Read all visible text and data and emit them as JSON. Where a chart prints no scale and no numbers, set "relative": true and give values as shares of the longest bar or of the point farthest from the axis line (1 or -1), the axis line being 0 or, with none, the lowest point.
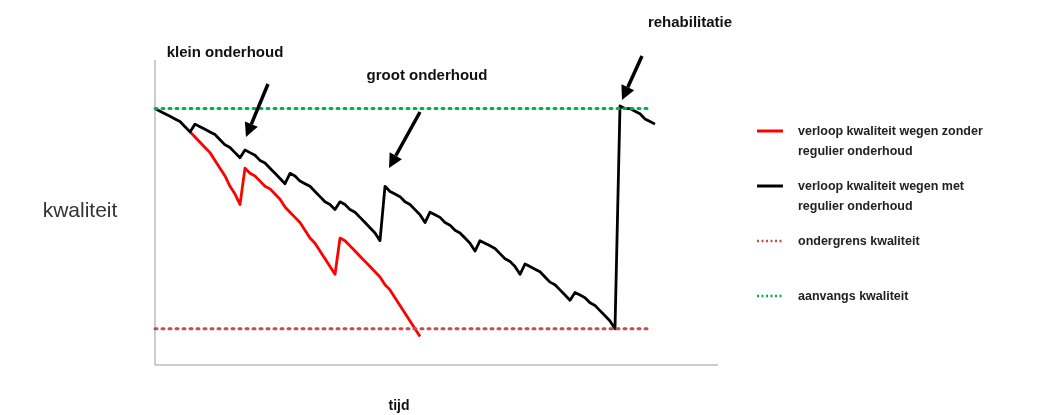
{
  "chart_data": {
    "type": "line",
    "relative": true,
    "xlabel": "tijd",
    "ylabel": "kwaliteit",
    "legend": "right",
    "line_style": "solid",
    "marker": "none",
    "annotations": [
      "klein onderhoud",
      "groot onderhoud",
      "rehabilitatie"
    ],
    "categories": [
      null,
      null,
      null,
      null,
      null,
      null,
      null,
      null,
      null,
      null,
      null,
      null,
      null,
      null,
      null,
      null,
      null,
      null,
      null,
      null,
      null,
      null,
      null,
      null,
      null,
      null,
      null,
      null,
      null,
      null,
      null,
      null,
      null,
      null,
      null,
      null,
      null,
      null,
      null,
      null,
      null,
      null,
      null,
      null,
      null,
      null,
      null,
      null,
      null,
      null,
      null,
      null,
      null,
      null,
      null,
      null,
      null,
      null,
      null,
      null,
      null,
      null,
      null,
      null,
      null,
      null,
      null,
      null,
      null,
      null,
      null,
      null,
      null,
      null,
      null,
      null,
      null,
      null,
      null,
      null,
      null,
      null,
      null,
      null,
      null,
      null,
      null,
      null,
      null,
      null,
      null,
      null,
      null,
      null,
      null,
      null,
      null,
      null,
      null,
      null,
      null
    ],
    "series": [
      {
        "name": "verloop kwaliteit wegen zonder regulier onderhoud",
        "color": "#ff0000",
        "values": [
          null,
          null,
          null,
          null,
          null,
          null,
          null,
          0.9,
          0.88,
          0.86,
          0.84,
          0.82,
          0.79,
          0.76,
          0.73,
          0.69,
          0.66,
          0.62,
          0.76,
          0.74,
          0.73,
          0.71,
          0.69,
          0.68,
          0.66,
          0.64,
          0.61,
          0.59,
          0.57,
          0.55,
          0.52,
          0.49,
          0.47,
          0.44,
          0.41,
          0.38,
          0.35,
          0.49,
          0.48,
          0.46,
          0.44,
          0.42,
          0.4,
          0.38,
          0.36,
          0.34,
          0.31,
          0.29,
          0.26,
          0.23,
          0.2,
          0.17,
          0.14,
          0.11,
          null,
          null,
          null,
          null,
          null,
          null,
          null,
          null,
          null,
          null,
          null,
          null,
          null,
          null,
          null,
          null,
          null,
          null,
          null,
          null,
          null,
          null,
          null,
          null,
          null,
          null,
          null,
          null,
          null,
          null,
          null,
          null,
          null,
          null,
          null,
          null,
          null,
          null,
          null,
          null,
          null,
          null,
          null,
          null,
          null,
          null,
          null
        ]
      },
      {
        "name": "verloop kwaliteit wegen met regulier onderhoud",
        "color": "#000000",
        "values": [
          0.99,
          0.98,
          0.97,
          0.96,
          0.95,
          0.94,
          0.92,
          0.9,
          0.93,
          0.92,
          0.91,
          0.9,
          0.89,
          0.87,
          0.85,
          0.84,
          0.82,
          0.8,
          0.83,
          0.82,
          0.81,
          0.79,
          0.78,
          0.76,
          0.74,
          0.72,
          0.7,
          0.74,
          0.73,
          0.71,
          0.7,
          0.69,
          0.67,
          0.65,
          0.63,
          0.62,
          0.6,
          0.63,
          0.62,
          0.6,
          0.59,
          0.57,
          0.55,
          0.53,
          0.51,
          0.48,
          0.69,
          0.67,
          0.66,
          0.65,
          0.63,
          0.62,
          0.6,
          0.58,
          0.55,
          0.59,
          0.58,
          0.57,
          0.55,
          0.54,
          0.52,
          0.51,
          0.49,
          0.47,
          0.44,
          0.48,
          0.47,
          0.46,
          0.45,
          0.43,
          0.41,
          0.4,
          0.38,
          0.35,
          0.39,
          0.38,
          0.37,
          0.36,
          0.34,
          0.32,
          0.31,
          0.29,
          0.27,
          0.25,
          0.28,
          0.27,
          0.26,
          0.24,
          0.23,
          0.21,
          0.19,
          0.17,
          0.14,
          1,
          0.99,
          0.99,
          0.98,
          0.97,
          0.95,
          0.94,
          0.93
        ]
      },
      {
        "name": "ondergrens kwaliteit",
        "color": "#c0504d",
        "line_style": "dotted",
        "values": [
          0.14,
          0.14,
          0.14,
          0.14,
          0.14,
          0.14,
          0.14,
          0.14,
          0.14,
          0.14,
          0.14,
          0.14,
          0.14,
          0.14,
          0.14,
          0.14,
          0.14,
          0.14,
          0.14,
          0.14,
          0.14,
          0.14,
          0.14,
          0.14,
          0.14,
          0.14,
          0.14,
          0.14,
          0.14,
          0.14,
          0.14,
          0.14,
          0.14,
          0.14,
          0.14,
          0.14,
          0.14,
          0.14,
          0.14,
          0.14,
          0.14,
          0.14,
          0.14,
          0.14,
          0.14,
          0.14,
          0.14,
          0.14,
          0.14,
          0.14,
          0.14,
          0.14,
          0.14,
          0.14,
          0.14,
          0.14,
          0.14,
          0.14,
          0.14,
          0.14,
          0.14,
          0.14,
          0.14,
          0.14,
          0.14,
          0.14,
          0.14,
          0.14,
          0.14,
          0.14,
          0.14,
          0.14,
          0.14,
          0.14,
          0.14,
          0.14,
          0.14,
          0.14,
          0.14,
          0.14,
          0.14,
          0.14,
          0.14,
          0.14,
          0.14,
          0.14,
          0.14,
          0.14,
          0.14,
          0.14,
          0.14,
          0.14,
          0.14,
          0.14,
          0.14,
          0.14,
          0.14,
          0.14,
          0.14,
          0.14,
          null
        ]
      },
      {
        "name": "aanvangs kwaliteit",
        "color": "#00b050",
        "line_style": "dotted",
        "values": [
          0.99,
          0.99,
          0.99,
          0.99,
          0.99,
          0.99,
          0.99,
          0.99,
          0.99,
          0.99,
          0.99,
          0.99,
          0.99,
          0.99,
          0.99,
          0.99,
          0.99,
          0.99,
          0.99,
          0.99,
          0.99,
          0.99,
          0.99,
          0.99,
          0.99,
          0.99,
          0.99,
          0.99,
          0.99,
          0.99,
          0.99,
          0.99,
          0.99,
          0.99,
          0.99,
          0.99,
          0.99,
          0.99,
          0.99,
          0.99,
          0.99,
          0.99,
          0.99,
          0.99,
          0.99,
          0.99,
          0.99,
          0.99,
          0.99,
          0.99,
          0.99,
          0.99,
          0.99,
          0.99,
          0.99,
          0.99,
          0.99,
          0.99,
          0.99,
          0.99,
          0.99,
          0.99,
          0.99,
          0.99,
          0.99,
          0.99,
          0.99,
          0.99,
          0.99,
          0.99,
          0.99,
          0.99,
          0.99,
          0.99,
          0.99,
          0.99,
          0.99,
          0.99,
          0.99,
          0.99,
          0.99,
          0.99,
          0.99,
          0.99,
          0.99,
          0.99,
          0.99,
          0.99,
          0.99,
          0.99,
          0.99,
          0.99,
          0.99,
          0.99,
          0.99,
          0.99,
          0.99,
          0.99,
          0.99,
          0.99,
          null
        ]
      }
    ]
  }
}
